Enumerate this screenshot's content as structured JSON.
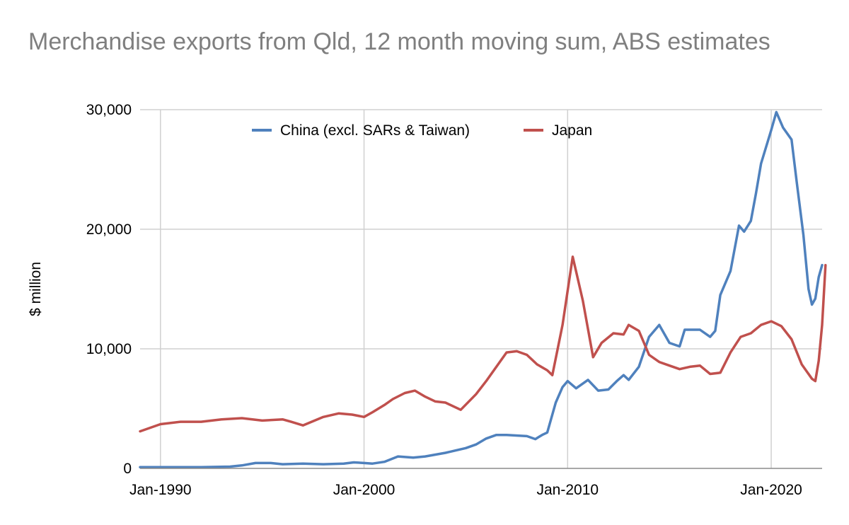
{
  "chart_data": {
    "type": "line",
    "title": "Merchandise exports from Qld, 12 month moving sum, ABS estimates",
    "ylabel": "$ million",
    "xlabel": "",
    "ylim": [
      0,
      30000
    ],
    "xlim": [
      "1989-01",
      "2022-07"
    ],
    "yticks": [
      0,
      10000,
      20000,
      30000
    ],
    "ytick_labels": [
      "0",
      "10,000",
      "20,000",
      "30,000"
    ],
    "xticks": [
      "1990-01",
      "2000-01",
      "2010-01",
      "2020-01"
    ],
    "xtick_labels": [
      "Jan-1990",
      "Jan-2000",
      "Jan-2010",
      "Jan-2020"
    ],
    "grid": true,
    "legend_position": "top-center",
    "series": [
      {
        "name": "China (excl. SARs & Taiwan)",
        "color": "#4f81bd",
        "points": [
          [
            "1989-01",
            100
          ],
          [
            "1992-01",
            100
          ],
          [
            "1993-06",
            150
          ],
          [
            "1994-01",
            250
          ],
          [
            "1994-09",
            450
          ],
          [
            "1995-06",
            450
          ],
          [
            "1996-01",
            350
          ],
          [
            "1997-01",
            400
          ],
          [
            "1998-01",
            350
          ],
          [
            "1999-01",
            400
          ],
          [
            "1999-07",
            500
          ],
          [
            "2000-01",
            450
          ],
          [
            "2000-06",
            400
          ],
          [
            "2001-01",
            550
          ],
          [
            "2001-09",
            1000
          ],
          [
            "2002-06",
            900
          ],
          [
            "2003-01",
            1000
          ],
          [
            "2004-01",
            1300
          ],
          [
            "2005-01",
            1700
          ],
          [
            "2005-07",
            2000
          ],
          [
            "2006-01",
            2500
          ],
          [
            "2006-07",
            2800
          ],
          [
            "2007-01",
            2800
          ],
          [
            "2008-01",
            2700
          ],
          [
            "2008-06",
            2450
          ],
          [
            "2008-10",
            2800
          ],
          [
            "2009-01",
            3000
          ],
          [
            "2009-06",
            5500
          ],
          [
            "2009-10",
            6800
          ],
          [
            "2010-01",
            7300
          ],
          [
            "2010-06",
            6700
          ],
          [
            "2011-01",
            7400
          ],
          [
            "2011-07",
            6500
          ],
          [
            "2012-01",
            6600
          ],
          [
            "2012-06",
            7300
          ],
          [
            "2012-10",
            7800
          ],
          [
            "2013-01",
            7400
          ],
          [
            "2013-07",
            8500
          ],
          [
            "2014-01",
            11000
          ],
          [
            "2014-07",
            12000
          ],
          [
            "2015-01",
            10500
          ],
          [
            "2015-07",
            10200
          ],
          [
            "2015-10",
            11600
          ],
          [
            "2016-07",
            11600
          ],
          [
            "2017-01",
            11000
          ],
          [
            "2017-04",
            11500
          ],
          [
            "2017-07",
            14500
          ],
          [
            "2018-01",
            16500
          ],
          [
            "2018-06",
            20300
          ],
          [
            "2018-09",
            19800
          ],
          [
            "2019-01",
            20700
          ],
          [
            "2019-04",
            23000
          ],
          [
            "2019-07",
            25500
          ],
          [
            "2020-01",
            28300
          ],
          [
            "2020-04",
            29800
          ],
          [
            "2020-08",
            28500
          ],
          [
            "2021-01",
            27500
          ],
          [
            "2021-04",
            24000
          ],
          [
            "2021-08",
            19500
          ],
          [
            "2021-11",
            15000
          ],
          [
            "2022-01",
            13700
          ],
          [
            "2022-03",
            14200
          ],
          [
            "2022-05",
            16000
          ],
          [
            "2022-07",
            17000
          ]
        ]
      },
      {
        "name": "Japan",
        "color": "#c0504d",
        "points": [
          [
            "1989-01",
            3100
          ],
          [
            "1990-01",
            3700
          ],
          [
            "1991-01",
            3900
          ],
          [
            "1992-01",
            3900
          ],
          [
            "1993-01",
            4100
          ],
          [
            "1994-01",
            4200
          ],
          [
            "1995-01",
            4000
          ],
          [
            "1996-01",
            4100
          ],
          [
            "1996-06",
            3900
          ],
          [
            "1997-01",
            3600
          ],
          [
            "1998-01",
            4300
          ],
          [
            "1998-10",
            4600
          ],
          [
            "1999-06",
            4500
          ],
          [
            "2000-01",
            4300
          ],
          [
            "2000-06",
            4700
          ],
          [
            "2001-01",
            5300
          ],
          [
            "2001-06",
            5800
          ],
          [
            "2002-01",
            6300
          ],
          [
            "2002-07",
            6500
          ],
          [
            "2003-01",
            6000
          ],
          [
            "2003-07",
            5600
          ],
          [
            "2004-01",
            5500
          ],
          [
            "2004-10",
            4900
          ],
          [
            "2005-07",
            6200
          ],
          [
            "2006-01",
            7300
          ],
          [
            "2006-07",
            8500
          ],
          [
            "2007-01",
            9700
          ],
          [
            "2007-07",
            9800
          ],
          [
            "2008-01",
            9500
          ],
          [
            "2008-07",
            8700
          ],
          [
            "2009-01",
            8200
          ],
          [
            "2009-04",
            7800
          ],
          [
            "2009-10",
            12000
          ],
          [
            "2010-04",
            17700
          ],
          [
            "2010-10",
            14000
          ],
          [
            "2011-04",
            9300
          ],
          [
            "2011-09",
            10500
          ],
          [
            "2012-04",
            11300
          ],
          [
            "2012-10",
            11200
          ],
          [
            "2013-01",
            12000
          ],
          [
            "2013-07",
            11500
          ],
          [
            "2014-01",
            9500
          ],
          [
            "2014-07",
            8900
          ],
          [
            "2015-01",
            8600
          ],
          [
            "2015-07",
            8300
          ],
          [
            "2016-01",
            8500
          ],
          [
            "2016-07",
            8600
          ],
          [
            "2017-01",
            7900
          ],
          [
            "2017-07",
            8000
          ],
          [
            "2018-01",
            9700
          ],
          [
            "2018-07",
            11000
          ],
          [
            "2019-01",
            11300
          ],
          [
            "2019-07",
            12000
          ],
          [
            "2020-01",
            12300
          ],
          [
            "2020-07",
            11900
          ],
          [
            "2021-01",
            10800
          ],
          [
            "2021-07",
            8700
          ],
          [
            "2022-01",
            7500
          ],
          [
            "2022-03",
            7300
          ],
          [
            "2022-05",
            9000
          ],
          [
            "2022-07",
            12000
          ],
          [
            "2022-08",
            14500
          ],
          [
            "2022-09",
            17000
          ]
        ]
      }
    ]
  }
}
